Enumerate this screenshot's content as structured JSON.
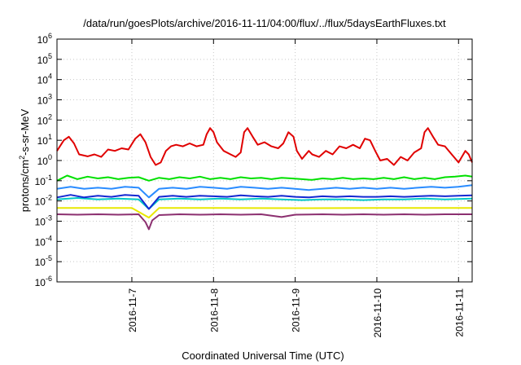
{
  "chart_data": {
    "type": "line",
    "title": "/data/run/goesPlots/archive/2016-11-11/04:00/flux/../flux/5daysEarthFluxes.txt",
    "xlabel": "Coordinated Universal Time (UTC)",
    "ylabel": {
      "prefix": "protons/cm",
      "superscript": "2",
      "suffix": "-s-sr-MeV"
    },
    "yscale": "log",
    "ylim": [
      1e-06,
      1000000.0
    ],
    "y_ticks": [
      {
        "base": "10",
        "exp": "-6",
        "value": 1e-06
      },
      {
        "base": "10",
        "exp": "-5",
        "value": 1e-05
      },
      {
        "base": "10",
        "exp": "-4",
        "value": 0.0001
      },
      {
        "base": "10",
        "exp": "-3",
        "value": 0.001
      },
      {
        "base": "10",
        "exp": "-2",
        "value": 0.01
      },
      {
        "base": "10",
        "exp": "-1",
        "value": 0.1
      },
      {
        "base": "10",
        "exp": "0",
        "value": 1
      },
      {
        "base": "10",
        "exp": "1",
        "value": 10
      },
      {
        "base": "10",
        "exp": "2",
        "value": 100
      },
      {
        "base": "10",
        "exp": "3",
        "value": 1000
      },
      {
        "base": "10",
        "exp": "4",
        "value": 10000
      },
      {
        "base": "10",
        "exp": "5",
        "value": 100000
      },
      {
        "base": "10",
        "exp": "6",
        "value": 1000000
      }
    ],
    "xlim": [
      "2016-11-06T02:00",
      "2016-11-11T04:00"
    ],
    "x_ticks": [
      {
        "label": "2016-11-7",
        "value": "2016-11-07T00:00"
      },
      {
        "label": "2016-11-8",
        "value": "2016-11-08T00:00"
      },
      {
        "label": "2016-11-9",
        "value": "2016-11-09T00:00"
      },
      {
        "label": "2016-11-10",
        "value": "2016-11-10T00:00"
      },
      {
        "label": "2016-11-11",
        "value": "2016-11-11T00:00"
      }
    ],
    "grid": true,
    "series": [
      {
        "color": "#e00000",
        "points": [
          [
            "2016-11-06T02:00",
            3
          ],
          [
            "2016-11-06T04:00",
            10
          ],
          [
            "2016-11-06T05:30",
            15
          ],
          [
            "2016-11-06T07:00",
            7
          ],
          [
            "2016-11-06T08:30",
            2
          ],
          [
            "2016-11-06T11:00",
            1.6
          ],
          [
            "2016-11-06T13:00",
            2
          ],
          [
            "2016-11-06T15:00",
            1.5
          ],
          [
            "2016-11-06T17:00",
            3.5
          ],
          [
            "2016-11-06T19:00",
            3
          ],
          [
            "2016-11-06T21:00",
            4
          ],
          [
            "2016-11-06T23:00",
            3.5
          ],
          [
            "2016-11-07T01:00",
            12
          ],
          [
            "2016-11-07T02:30",
            20
          ],
          [
            "2016-11-07T04:00",
            8
          ],
          [
            "2016-11-07T05:30",
            1.5
          ],
          [
            "2016-11-07T07:00",
            0.6
          ],
          [
            "2016-11-07T08:30",
            0.8
          ],
          [
            "2016-11-07T10:00",
            3
          ],
          [
            "2016-11-07T11:30",
            5
          ],
          [
            "2016-11-07T13:00",
            6
          ],
          [
            "2016-11-07T15:00",
            5
          ],
          [
            "2016-11-07T17:00",
            7
          ],
          [
            "2016-11-07T19:00",
            5
          ],
          [
            "2016-11-07T21:00",
            6
          ],
          [
            "2016-11-07T22:00",
            20
          ],
          [
            "2016-11-07T23:00",
            40
          ],
          [
            "2016-11-08T00:00",
            25
          ],
          [
            "2016-11-08T01:00",
            8
          ],
          [
            "2016-11-08T03:00",
            3
          ],
          [
            "2016-11-08T05:00",
            2
          ],
          [
            "2016-11-08T06:30",
            1.5
          ],
          [
            "2016-11-08T08:00",
            2.5
          ],
          [
            "2016-11-08T09:00",
            25
          ],
          [
            "2016-11-08T10:00",
            40
          ],
          [
            "2016-11-08T11:30",
            15
          ],
          [
            "2016-11-08T13:00",
            6
          ],
          [
            "2016-11-08T15:00",
            8
          ],
          [
            "2016-11-08T17:00",
            5
          ],
          [
            "2016-11-08T19:00",
            4
          ],
          [
            "2016-11-08T20:30",
            7
          ],
          [
            "2016-11-08T22:00",
            25
          ],
          [
            "2016-11-08T23:30",
            15
          ],
          [
            "2016-11-09T00:30",
            3
          ],
          [
            "2016-11-09T02:00",
            1.2
          ],
          [
            "2016-11-09T04:00",
            3
          ],
          [
            "2016-11-09T05:00",
            2
          ],
          [
            "2016-11-09T07:00",
            1.5
          ],
          [
            "2016-11-09T09:00",
            3
          ],
          [
            "2016-11-09T11:00",
            2
          ],
          [
            "2016-11-09T13:00",
            5
          ],
          [
            "2016-11-09T15:00",
            4
          ],
          [
            "2016-11-09T17:00",
            6
          ],
          [
            "2016-11-09T19:00",
            4
          ],
          [
            "2016-11-09T20:30",
            12
          ],
          [
            "2016-11-09T22:00",
            10
          ],
          [
            "2016-11-09T23:30",
            3
          ],
          [
            "2016-11-10T01:00",
            1
          ],
          [
            "2016-11-10T03:00",
            1.2
          ],
          [
            "2016-11-10T05:00",
            0.6
          ],
          [
            "2016-11-10T07:00",
            1.5
          ],
          [
            "2016-11-10T09:00",
            1
          ],
          [
            "2016-11-10T11:00",
            2.5
          ],
          [
            "2016-11-10T13:00",
            4
          ],
          [
            "2016-11-10T14:00",
            25
          ],
          [
            "2016-11-10T15:00",
            40
          ],
          [
            "2016-11-10T16:30",
            15
          ],
          [
            "2016-11-10T18:00",
            6
          ],
          [
            "2016-11-10T20:00",
            5
          ],
          [
            "2016-11-10T22:00",
            2
          ],
          [
            "2016-11-11T00:00",
            0.8
          ],
          [
            "2016-11-11T02:00",
            3
          ],
          [
            "2016-11-11T03:00",
            2
          ],
          [
            "2016-11-11T04:00",
            0.8
          ]
        ]
      },
      {
        "color": "#00e000",
        "points": [
          [
            "2016-11-06T02:00",
            0.1
          ],
          [
            "2016-11-06T05:00",
            0.18
          ],
          [
            "2016-11-06T08:00",
            0.12
          ],
          [
            "2016-11-06T11:00",
            0.16
          ],
          [
            "2016-11-06T14:00",
            0.13
          ],
          [
            "2016-11-06T17:00",
            0.15
          ],
          [
            "2016-11-06T20:00",
            0.12
          ],
          [
            "2016-11-06T23:00",
            0.14
          ],
          [
            "2016-11-07T02:00",
            0.15
          ],
          [
            "2016-11-07T05:00",
            0.1
          ],
          [
            "2016-11-07T08:00",
            0.14
          ],
          [
            "2016-11-07T11:00",
            0.12
          ],
          [
            "2016-11-07T14:00",
            0.15
          ],
          [
            "2016-11-07T17:00",
            0.13
          ],
          [
            "2016-11-07T20:00",
            0.16
          ],
          [
            "2016-11-07T23:00",
            0.12
          ],
          [
            "2016-11-08T02:00",
            0.14
          ],
          [
            "2016-11-08T05:00",
            0.12
          ],
          [
            "2016-11-08T08:00",
            0.15
          ],
          [
            "2016-11-08T11:00",
            0.13
          ],
          [
            "2016-11-08T14:00",
            0.14
          ],
          [
            "2016-11-08T17:00",
            0.12
          ],
          [
            "2016-11-08T20:00",
            0.14
          ],
          [
            "2016-11-08T23:00",
            0.13
          ],
          [
            "2016-11-09T02:00",
            0.12
          ],
          [
            "2016-11-09T05:00",
            0.11
          ],
          [
            "2016-11-09T08:00",
            0.13
          ],
          [
            "2016-11-09T11:00",
            0.12
          ],
          [
            "2016-11-09T14:00",
            0.14
          ],
          [
            "2016-11-09T17:00",
            0.12
          ],
          [
            "2016-11-09T20:00",
            0.13
          ],
          [
            "2016-11-09T23:00",
            0.12
          ],
          [
            "2016-11-10T02:00",
            0.14
          ],
          [
            "2016-11-10T05:00",
            0.12
          ],
          [
            "2016-11-10T08:00",
            0.15
          ],
          [
            "2016-11-10T11:00",
            0.12
          ],
          [
            "2016-11-10T14:00",
            0.14
          ],
          [
            "2016-11-10T17:00",
            0.12
          ],
          [
            "2016-11-10T20:00",
            0.15
          ],
          [
            "2016-11-10T23:00",
            0.16
          ],
          [
            "2016-11-11T02:00",
            0.18
          ],
          [
            "2016-11-11T04:00",
            0.16
          ]
        ]
      },
      {
        "color": "#2a8cff",
        "points": [
          [
            "2016-11-06T02:00",
            0.04
          ],
          [
            "2016-11-06T06:00",
            0.05
          ],
          [
            "2016-11-06T10:00",
            0.04
          ],
          [
            "2016-11-06T14:00",
            0.045
          ],
          [
            "2016-11-06T18:00",
            0.04
          ],
          [
            "2016-11-06T22:00",
            0.05
          ],
          [
            "2016-11-07T02:00",
            0.045
          ],
          [
            "2016-11-07T05:00",
            0.015
          ],
          [
            "2016-11-07T08:00",
            0.04
          ],
          [
            "2016-11-07T12:00",
            0.045
          ],
          [
            "2016-11-07T16:00",
            0.04
          ],
          [
            "2016-11-07T20:00",
            0.05
          ],
          [
            "2016-11-08T00:00",
            0.045
          ],
          [
            "2016-11-08T04:00",
            0.04
          ],
          [
            "2016-11-08T08:00",
            0.05
          ],
          [
            "2016-11-08T12:00",
            0.045
          ],
          [
            "2016-11-08T16:00",
            0.04
          ],
          [
            "2016-11-08T20:00",
            0.045
          ],
          [
            "2016-11-09T00:00",
            0.04
          ],
          [
            "2016-11-09T04:00",
            0.035
          ],
          [
            "2016-11-09T08:00",
            0.04
          ],
          [
            "2016-11-09T12:00",
            0.045
          ],
          [
            "2016-11-09T16:00",
            0.04
          ],
          [
            "2016-11-09T20:00",
            0.045
          ],
          [
            "2016-11-10T00:00",
            0.04
          ],
          [
            "2016-11-10T04:00",
            0.045
          ],
          [
            "2016-11-10T08:00",
            0.04
          ],
          [
            "2016-11-10T12:00",
            0.045
          ],
          [
            "2016-11-10T16:00",
            0.05
          ],
          [
            "2016-11-10T20:00",
            0.045
          ],
          [
            "2016-11-11T00:00",
            0.05
          ],
          [
            "2016-11-11T04:00",
            0.06
          ]
        ]
      },
      {
        "color": "#00c8c8",
        "points": [
          [
            "2016-11-06T02:00",
            0.012
          ],
          [
            "2016-11-06T08:00",
            0.014
          ],
          [
            "2016-11-06T14:00",
            0.012
          ],
          [
            "2016-11-06T20:00",
            0.013
          ],
          [
            "2016-11-07T02:00",
            0.012
          ],
          [
            "2016-11-07T05:00",
            0.004
          ],
          [
            "2016-11-07T08:00",
            0.012
          ],
          [
            "2016-11-07T14:00",
            0.013
          ],
          [
            "2016-11-07T20:00",
            0.012
          ],
          [
            "2016-11-08T02:00",
            0.013
          ],
          [
            "2016-11-08T08:00",
            0.012
          ],
          [
            "2016-11-08T14:00",
            0.013
          ],
          [
            "2016-11-08T20:00",
            0.012
          ],
          [
            "2016-11-09T02:00",
            0.011
          ],
          [
            "2016-11-09T08:00",
            0.012
          ],
          [
            "2016-11-09T14:00",
            0.012
          ],
          [
            "2016-11-09T20:00",
            0.011
          ],
          [
            "2016-11-10T02:00",
            0.012
          ],
          [
            "2016-11-10T08:00",
            0.012
          ],
          [
            "2016-11-10T14:00",
            0.013
          ],
          [
            "2016-11-10T20:00",
            0.012
          ],
          [
            "2016-11-11T04:00",
            0.013
          ]
        ]
      },
      {
        "color": "#1428d2",
        "points": [
          [
            "2016-11-06T02:00",
            0.015
          ],
          [
            "2016-11-06T06:00",
            0.02
          ],
          [
            "2016-11-06T10:00",
            0.015
          ],
          [
            "2016-11-06T14:00",
            0.018
          ],
          [
            "2016-11-06T18:00",
            0.016
          ],
          [
            "2016-11-06T22:00",
            0.02
          ],
          [
            "2016-11-07T02:00",
            0.018
          ],
          [
            "2016-11-07T05:00",
            0.004
          ],
          [
            "2016-11-07T08:00",
            0.016
          ],
          [
            "2016-11-07T12:00",
            0.018
          ],
          [
            "2016-11-07T16:00",
            0.016
          ],
          [
            "2016-11-07T20:00",
            0.018
          ],
          [
            "2016-11-08T00:00",
            0.017
          ],
          [
            "2016-11-08T04:00",
            0.016
          ],
          [
            "2016-11-08T08:00",
            0.019
          ],
          [
            "2016-11-08T12:00",
            0.017
          ],
          [
            "2016-11-08T16:00",
            0.016
          ],
          [
            "2016-11-08T20:00",
            0.018
          ],
          [
            "2016-11-09T00:00",
            0.016
          ],
          [
            "2016-11-09T04:00",
            0.015
          ],
          [
            "2016-11-09T08:00",
            0.017
          ],
          [
            "2016-11-09T12:00",
            0.016
          ],
          [
            "2016-11-09T16:00",
            0.017
          ],
          [
            "2016-11-09T20:00",
            0.016
          ],
          [
            "2016-11-10T00:00",
            0.016
          ],
          [
            "2016-11-10T04:00",
            0.017
          ],
          [
            "2016-11-10T08:00",
            0.016
          ],
          [
            "2016-11-10T12:00",
            0.017
          ],
          [
            "2016-11-10T16:00",
            0.018
          ],
          [
            "2016-11-10T20:00",
            0.017
          ],
          [
            "2016-11-11T00:00",
            0.018
          ],
          [
            "2016-11-11T04:00",
            0.019
          ]
        ]
      },
      {
        "color": "#e8e800",
        "points": [
          [
            "2016-11-06T02:00",
            0.0045
          ],
          [
            "2016-11-06T12:00",
            0.0045
          ],
          [
            "2016-11-07T00:00",
            0.0045
          ],
          [
            "2016-11-07T05:00",
            0.0015
          ],
          [
            "2016-11-07T08:00",
            0.0045
          ],
          [
            "2016-11-08T00:00",
            0.0045
          ],
          [
            "2016-11-09T00:00",
            0.0044
          ],
          [
            "2016-11-10T00:00",
            0.0045
          ],
          [
            "2016-11-11T04:00",
            0.0045
          ]
        ]
      },
      {
        "color": "#8c3070",
        "points": [
          [
            "2016-11-06T02:00",
            0.0022
          ],
          [
            "2016-11-06T08:00",
            0.0021
          ],
          [
            "2016-11-06T14:00",
            0.0022
          ],
          [
            "2016-11-06T20:00",
            0.0021
          ],
          [
            "2016-11-07T02:00",
            0.0022
          ],
          [
            "2016-11-07T04:00",
            0.0009
          ],
          [
            "2016-11-07T05:00",
            0.0004
          ],
          [
            "2016-11-07T06:00",
            0.0011
          ],
          [
            "2016-11-07T08:00",
            0.002
          ],
          [
            "2016-11-07T14:00",
            0.0022
          ],
          [
            "2016-11-07T20:00",
            0.0021
          ],
          [
            "2016-11-08T02:00",
            0.0022
          ],
          [
            "2016-11-08T08:00",
            0.0021
          ],
          [
            "2016-11-08T14:00",
            0.0022
          ],
          [
            "2016-11-08T20:00",
            0.0016
          ],
          [
            "2016-11-09T00:00",
            0.0021
          ],
          [
            "2016-11-09T08:00",
            0.0022
          ],
          [
            "2016-11-09T14:00",
            0.0021
          ],
          [
            "2016-11-09T20:00",
            0.0022
          ],
          [
            "2016-11-10T02:00",
            0.0021
          ],
          [
            "2016-11-10T08:00",
            0.0022
          ],
          [
            "2016-11-10T14:00",
            0.0021
          ],
          [
            "2016-11-10T20:00",
            0.0022
          ],
          [
            "2016-11-11T04:00",
            0.0022
          ]
        ]
      }
    ]
  }
}
